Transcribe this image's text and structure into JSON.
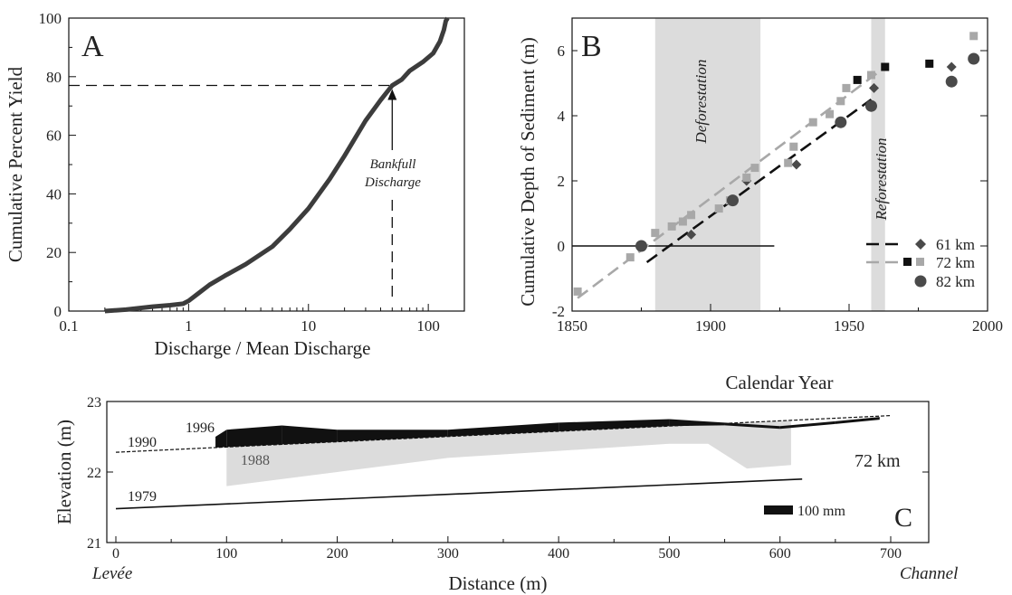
{
  "colors": {
    "black": "#111111",
    "curve": "#3c3c3c",
    "gray": "#a8a8a8",
    "dark": "#4a4a4a",
    "shade": "#dcdcdc"
  },
  "chart_data": [
    {
      "type": "line",
      "panel_label": "A",
      "xlabel": "Discharge / Mean Discharge",
      "ylabel": "Cumulative Percent Yield",
      "xscale": "log",
      "xlim": [
        0.1,
        200
      ],
      "ylim": [
        0,
        100
      ],
      "xticks": [
        "0.1",
        "1",
        "10",
        "100"
      ],
      "yticks": [
        "0",
        "20",
        "40",
        "60",
        "80",
        "100"
      ],
      "series": [
        {
          "x": [
            0.2,
            0.3,
            0.5,
            0.7,
            0.9,
            1.0,
            1.2,
            1.5,
            2,
            3,
            5,
            7,
            10,
            15,
            20,
            30,
            40,
            50,
            60,
            70,
            90,
            110,
            125,
            135,
            140,
            145
          ],
          "y": [
            0,
            0.5,
            1.5,
            2,
            2.5,
            3.5,
            6,
            9,
            12,
            16,
            22,
            28,
            35,
            45,
            53,
            65,
            72,
            77,
            79,
            82,
            85,
            88,
            92,
            96,
            99,
            100
          ]
        }
      ],
      "annotations": [
        {
          "text_lines": [
            "Bankfull",
            "Discharge"
          ],
          "x": 50,
          "y": 77
        }
      ]
    },
    {
      "type": "scatter",
      "panel_label": "B",
      "xlabel": "Calendar Year",
      "ylabel": "Cumulative Depth of Sediment (m)",
      "xlim": [
        1850,
        2000
      ],
      "ylim": [
        -2,
        7
      ],
      "xticks": [
        "1850",
        "1900",
        "1950",
        "2000"
      ],
      "yticks": [
        "-2",
        "0",
        "2",
        "4",
        "6"
      ],
      "shaded": [
        {
          "label": "Deforestation",
          "x": [
            1880,
            1918
          ]
        },
        {
          "label": "Reforestation",
          "x": [
            1958,
            1963
          ]
        }
      ],
      "series": [
        {
          "name": "61 km",
          "marker": "diamond",
          "x": [
            1893,
            1913,
            1931,
            1959,
            1987
          ],
          "y": [
            0.35,
            2.0,
            2.5,
            4.85,
            5.5
          ]
        },
        {
          "name": "72 km",
          "marker": "square",
          "color": "gray",
          "x": [
            1852,
            1871,
            1880,
            1886,
            1890,
            1893,
            1903,
            1907,
            1913,
            1916,
            1928,
            1930,
            1937,
            1943,
            1947,
            1949,
            1958,
            1995
          ],
          "y": [
            -1.4,
            -0.35,
            0.4,
            0.6,
            0.75,
            0.95,
            1.15,
            1.4,
            2.1,
            2.4,
            2.55,
            3.05,
            3.8,
            4.05,
            4.45,
            4.85,
            5.25,
            6.45
          ]
        },
        {
          "name": "72 km",
          "marker": "square",
          "color": "black",
          "x": [
            1953,
            1963,
            1979
          ],
          "y": [
            5.1,
            5.5,
            5.6
          ]
        },
        {
          "name": "82 km",
          "marker": "circle",
          "x": [
            1875,
            1908,
            1947,
            1958,
            1987,
            1995
          ],
          "y": [
            0,
            1.4,
            3.8,
            4.3,
            5.05,
            5.75
          ]
        }
      ],
      "legend": [
        "61 km",
        "72 km",
        "82 km"
      ],
      "legend_position": "bottom-right",
      "fits": [
        {
          "x": [
            1877,
            1958
          ],
          "y": [
            -0.5,
            4.5
          ],
          "style": "dashed-black"
        },
        {
          "x": [
            1852,
            1960
          ],
          "y": [
            -1.6,
            5.3
          ],
          "style": "dashed-gray"
        }
      ],
      "zero_line": {
        "x": [
          1850,
          1923
        ],
        "y": 0
      }
    },
    {
      "type": "area",
      "panel_label": "C",
      "xlabel": "Distance (m)",
      "ylabel": "Elevation (m)",
      "xlim": [
        0,
        740
      ],
      "ylim": [
        21,
        23
      ],
      "xticks": [
        "0",
        "100",
        "200",
        "300",
        "400",
        "500",
        "600",
        "700"
      ],
      "yticks": [
        "21",
        "22",
        "23"
      ],
      "left_label": "Levée",
      "right_label": "Channel",
      "station": "72 km",
      "scale_label": "100 mm",
      "surfaces": [
        {
          "name": "1979",
          "x": [
            0,
            620
          ],
          "y": [
            21.48,
            21.9
          ]
        },
        {
          "name": "1990",
          "x": [
            0,
            700
          ],
          "y": [
            22.28,
            22.8
          ]
        },
        {
          "name": "1988",
          "x": [
            100,
            200,
            300,
            400,
            500,
            535,
            570,
            610
          ],
          "y": [
            21.8,
            22.0,
            22.2,
            22.3,
            22.4,
            22.4,
            22.05,
            22.1
          ]
        },
        {
          "name": "1996",
          "x": [
            90,
            100,
            150,
            200,
            300,
            400,
            500,
            550,
            600,
            650,
            690
          ],
          "y": [
            22.5,
            22.6,
            22.66,
            22.6,
            22.6,
            22.7,
            22.75,
            22.7,
            22.65,
            22.72,
            22.78
          ]
        }
      ]
    }
  ]
}
